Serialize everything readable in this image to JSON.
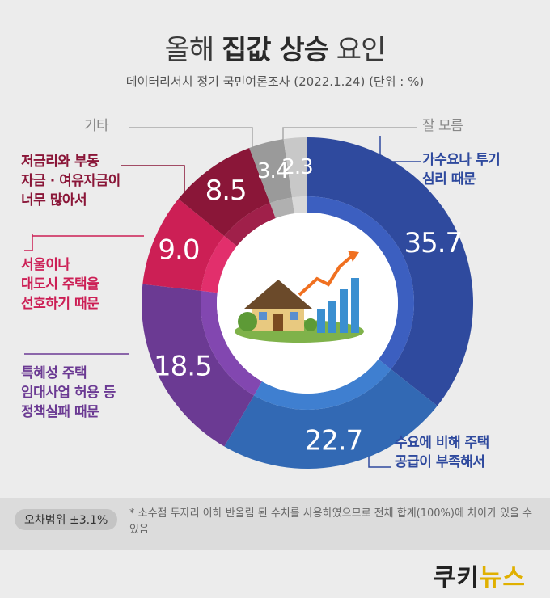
{
  "title_pre": "올해",
  "title_bold": "집값 상승",
  "title_post": "요인",
  "subtitle": "데이터리서치 정기 국민여론조사 (2022.1.24) (단위 : %)",
  "chart_data": {
    "type": "pie",
    "unit": "%",
    "slices": [
      {
        "label": "가수요나 투기 심리 때문",
        "value": 35.7,
        "color": "#2f4a9e",
        "inner": "#3c5fc0"
      },
      {
        "label": "수요에 비해 주택 공급이 부족해서",
        "value": 22.7,
        "color": "#3269b4",
        "inner": "#3f7fd0"
      },
      {
        "label": "특혜성 주택 임대사업 허용 등 정책실패 때문",
        "value": 18.5,
        "color": "#6b3a93",
        "inner": "#8247b0"
      },
      {
        "label": "서울이나 대도시 주택을 선호하기 때문",
        "value": 9.0,
        "color": "#cc1f55",
        "inner": "#e22f6c"
      },
      {
        "label": "저금리와 부동 자금·여유자금이 너무 많아서",
        "value": 8.5,
        "color": "#8a1638",
        "inner": "#a0204a"
      },
      {
        "label": "기타",
        "value": 3.4,
        "color": "#9a9a9a",
        "inner": "#b0b0b0"
      },
      {
        "label": "잘 모름",
        "value": 2.3,
        "color": "#c8c8c8",
        "inner": "#d8d8d8"
      }
    ]
  },
  "labels": {
    "l1": [
      "가수요나 투기",
      "심리 때문"
    ],
    "l2": [
      "수요에 비해 주택",
      "공급이 부족해서"
    ],
    "l3": [
      "특혜성 주택",
      "임대사업 허용 등",
      "정책실패 때문"
    ],
    "l4": [
      "서울이나",
      "대도시 주택을",
      "선호하기 때문"
    ],
    "l5": [
      "저금리와 부동",
      "자금 · 여유자금이",
      "너무 많아서"
    ],
    "l6": [
      "기타"
    ],
    "l7": [
      "잘 모름"
    ]
  },
  "colors": {
    "blue_label": "#2f4a9e",
    "purple_label": "#6b3a93",
    "red_label": "#cc1f55",
    "gray_label": "#888888"
  },
  "footer": {
    "moe": "오차범위 ±3.1%",
    "note": "* 소수점 두자리 이하 반올림 된 수치를 사용하였으므로 전체 합계(100%)에 차이가 있을 수 있음"
  },
  "logo_a": "쿠키",
  "logo_b": "뉴스"
}
